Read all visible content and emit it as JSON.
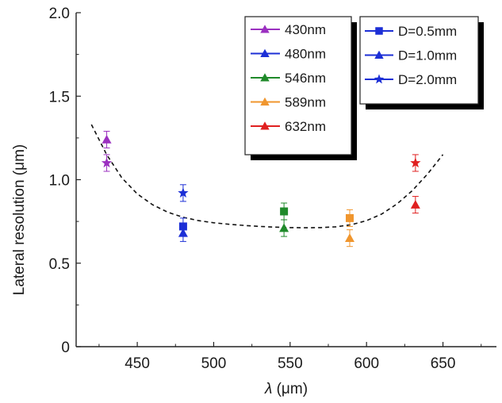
{
  "chart_data": {
    "type": "scatter",
    "xlabel_symbol": "λ",
    "xlabel_unit": " (μm)",
    "ylabel": "Lateral resolution (μm)",
    "xlim": [
      410,
      685
    ],
    "ylim": [
      0,
      2.0
    ],
    "x_ticks": [
      450,
      500,
      550,
      600,
      650
    ],
    "y_ticks": [
      0,
      0.5,
      1.0,
      1.5,
      2.0
    ],
    "y_tick_labels": [
      "0",
      "0.5",
      "1.0",
      "1.5",
      "2.0"
    ],
    "grid": false,
    "legend_wavelength": {
      "placement": "top-center",
      "entries": [
        {
          "label": "430nm",
          "color": "#9b30c0",
          "marker": "triangle"
        },
        {
          "label": "480nm",
          "color": "#1c2fd6",
          "marker": "triangle"
        },
        {
          "label": "546nm",
          "color": "#1f8a2a",
          "marker": "triangle"
        },
        {
          "label": "589nm",
          "color": "#f0962e",
          "marker": "triangle"
        },
        {
          "label": "632nm",
          "color": "#e02020",
          "marker": "triangle"
        }
      ]
    },
    "legend_diameter": {
      "placement": "top-right",
      "color": "#1c2fd6",
      "entries": [
        {
          "label": "D=0.5mm",
          "marker": "square"
        },
        {
          "label": "D=1.0mm",
          "marker": "triangle"
        },
        {
          "label": "D=2.0mm",
          "marker": "star"
        }
      ]
    },
    "points": [
      {
        "x": 430,
        "y": 1.24,
        "err": 0.05,
        "marker": "triangle",
        "color": "#9b30c0"
      },
      {
        "x": 430,
        "y": 1.1,
        "err": 0.05,
        "marker": "star",
        "color": "#9b30c0"
      },
      {
        "x": 480,
        "y": 0.72,
        "err": 0.05,
        "marker": "square",
        "color": "#1c2fd6"
      },
      {
        "x": 480,
        "y": 0.68,
        "err": 0.05,
        "marker": "triangle",
        "color": "#1c2fd6"
      },
      {
        "x": 480,
        "y": 0.92,
        "err": 0.05,
        "marker": "star",
        "color": "#1c2fd6"
      },
      {
        "x": 546,
        "y": 0.81,
        "err": 0.05,
        "marker": "square",
        "color": "#1f8a2a"
      },
      {
        "x": 546,
        "y": 0.71,
        "err": 0.05,
        "marker": "triangle",
        "color": "#1f8a2a"
      },
      {
        "x": 589,
        "y": 0.77,
        "err": 0.05,
        "marker": "square",
        "color": "#f0962e"
      },
      {
        "x": 589,
        "y": 0.65,
        "err": 0.05,
        "marker": "triangle",
        "color": "#f0962e"
      },
      {
        "x": 632,
        "y": 1.1,
        "err": 0.05,
        "marker": "star",
        "color": "#e02020"
      },
      {
        "x": 632,
        "y": 0.85,
        "err": 0.05,
        "marker": "triangle",
        "color": "#e02020"
      }
    ],
    "fit_curve": {
      "style": "dashed",
      "color": "#111111",
      "x": [
        420,
        430,
        440,
        450,
        460,
        470,
        480,
        490,
        500,
        510,
        520,
        530,
        540,
        550,
        560,
        570,
        580,
        590,
        600,
        610,
        620,
        630,
        640,
        650
      ],
      "y": [
        1.33,
        1.15,
        1.01,
        0.915,
        0.85,
        0.805,
        0.775,
        0.755,
        0.742,
        0.733,
        0.726,
        0.72,
        0.716,
        0.713,
        0.712,
        0.713,
        0.718,
        0.73,
        0.755,
        0.795,
        0.855,
        0.935,
        1.035,
        1.15
      ]
    }
  }
}
